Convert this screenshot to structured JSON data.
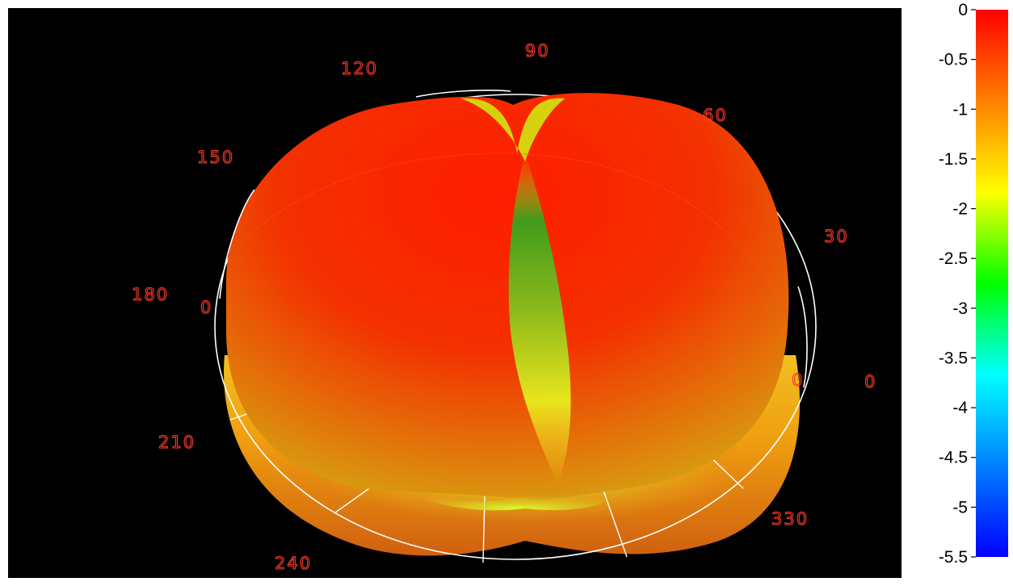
{
  "chart_data": {
    "type": "3d-surface",
    "title": "",
    "polar_angle_labels": [
      {
        "angle": 0,
        "text": "0"
      },
      {
        "angle": 30,
        "text": "30"
      },
      {
        "angle": 60,
        "text": "60"
      },
      {
        "angle": 90,
        "text": "90"
      },
      {
        "angle": 120,
        "text": "120"
      },
      {
        "angle": 150,
        "text": "150"
      },
      {
        "angle": 180,
        "text": "180"
      },
      {
        "angle": 210,
        "text": "210"
      },
      {
        "angle": 240,
        "text": "240"
      },
      {
        "angle": 330,
        "text": "330"
      }
    ],
    "ring_markers": [
      {
        "side": "left",
        "text": "0"
      },
      {
        "side": "right",
        "text": "0"
      }
    ],
    "colorbar": {
      "min": -5.5,
      "max": 0,
      "ticks": [
        {
          "value": 0,
          "text": "0"
        },
        {
          "value": -0.5,
          "text": "-0.5"
        },
        {
          "value": -1,
          "text": "-1"
        },
        {
          "value": -1.5,
          "text": "-1.5"
        },
        {
          "value": -2,
          "text": "-2"
        },
        {
          "value": -2.5,
          "text": "-2.5"
        },
        {
          "value": -3,
          "text": "-3"
        },
        {
          "value": -3.5,
          "text": "-3.5"
        },
        {
          "value": -4,
          "text": "-4"
        },
        {
          "value": -4.5,
          "text": "-4.5"
        },
        {
          "value": -5,
          "text": "-5"
        },
        {
          "value": -5.5,
          "text": "-5.5"
        }
      ],
      "colormap": [
        "#ff0000",
        "#ff8000",
        "#ffff00",
        "#00ff00",
        "#00ffff",
        "#0080ff",
        "#0000ff"
      ]
    }
  }
}
